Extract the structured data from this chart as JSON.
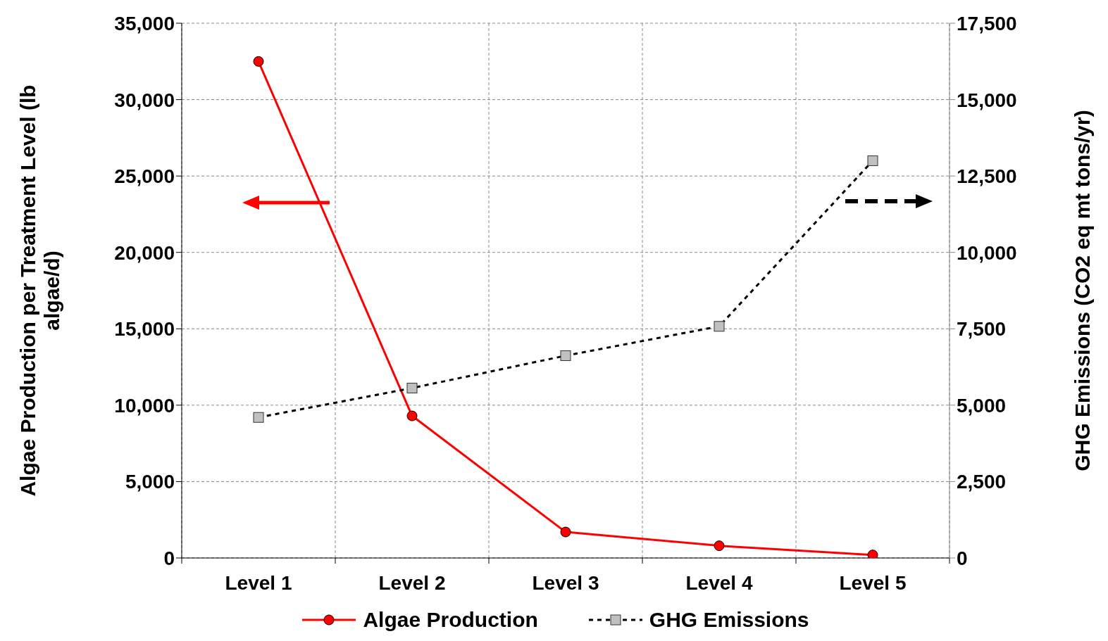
{
  "chart_data": {
    "type": "line",
    "categories": [
      "Level 1",
      "Level 2",
      "Level 3",
      "Level 4",
      "Level 5"
    ],
    "series": [
      {
        "name": "Algae Production",
        "color": "#ff0000",
        "values": [
          32500,
          9300,
          1700,
          800,
          200
        ],
        "marker": "circle",
        "line_style": "solid"
      },
      {
        "name": "GHG Emissions",
        "color": "#000000",
        "values": [
          4600,
          5560,
          6620,
          7580,
          13000
        ],
        "axis": "y2",
        "marker": "square",
        "line_style": "dashed"
      }
    ],
    "ylabel": "Algae Production per Treatment Level (lb algae/d)",
    "y2label": "GHG Emissions (CO2 eq mt tons/yr)",
    "ylim": [
      0,
      35000
    ],
    "yticks": [
      {
        "value": 0,
        "label": "0"
      },
      {
        "value": 5000,
        "label": "5,000"
      },
      {
        "value": 10000,
        "label": "10,000"
      },
      {
        "value": 15000,
        "label": "15,000"
      },
      {
        "value": 20000,
        "label": "20,000"
      },
      {
        "value": 25000,
        "label": "25,000"
      },
      {
        "value": 30000,
        "label": "30,000"
      },
      {
        "value": 35000,
        "label": "35,000"
      }
    ],
    "y2lim": [
      0,
      17500
    ],
    "y2ticks": [
      {
        "value": 0,
        "label": "0"
      },
      {
        "value": 2500,
        "label": "2,500"
      },
      {
        "value": 5000,
        "label": "5,000"
      },
      {
        "value": 7500,
        "label": "7,500"
      },
      {
        "value": 10000,
        "label": "10,000"
      },
      {
        "value": 12500,
        "label": "12,500"
      },
      {
        "value": 15000,
        "label": "15,000"
      },
      {
        "value": 17500,
        "label": "17,500"
      }
    ],
    "grid": true,
    "legend": "bottom"
  }
}
